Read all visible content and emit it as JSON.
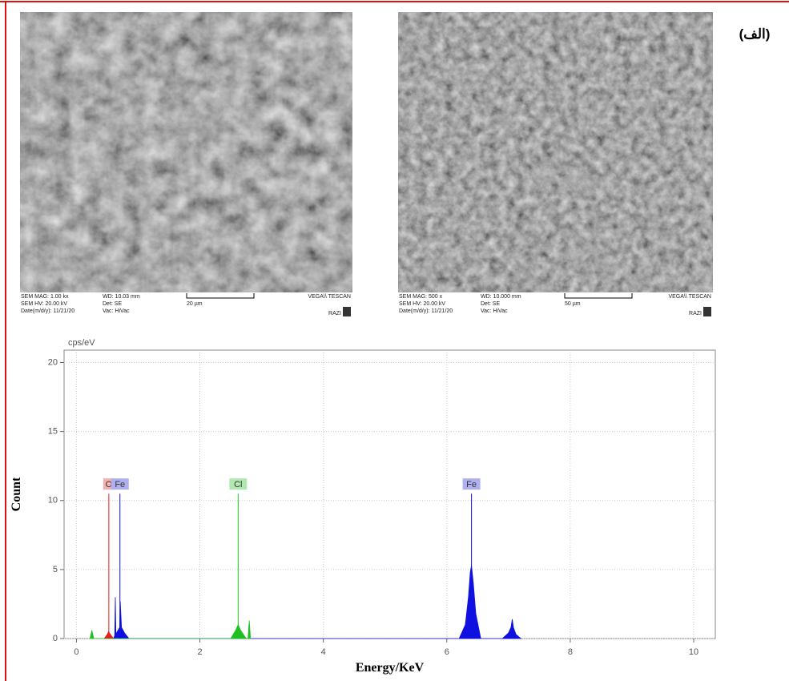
{
  "figure_label": "(الف)",
  "sem_images": [
    {
      "info": [
        [
          "SEM MAG: 1.00 kx",
          "WD: 10.03 mm"
        ],
        [
          "SEM HV: 20.00 kV",
          "Det: SE"
        ],
        [
          "Date(m/d/y): 11/21/20",
          "Vac: HiVac"
        ]
      ],
      "scale": "20 µm",
      "brand": "VEGA\\\\ TESCAN",
      "site": "RAZI"
    },
    {
      "info": [
        [
          "SEM MAG: 500 x",
          "WD: 10.000 mm"
        ],
        [
          "SEM HV: 20.00 kV",
          "Det: SE"
        ],
        [
          "Date(m/d/y): 11/21/20",
          "Vac: HiVac"
        ]
      ],
      "scale": "50 µm",
      "brand": "VEGA\\\\ TESCAN",
      "site": "RAZI"
    }
  ],
  "chart_data": {
    "type": "area",
    "y_unit": "cps/eV",
    "xlabel": "Energy/KeV",
    "ylabel": "Count",
    "xlim": [
      -0.2,
      10.35
    ],
    "ylim": [
      0,
      20.9
    ],
    "xticks": [
      0,
      2,
      4,
      6,
      8,
      10
    ],
    "yticks": [
      0,
      5,
      10,
      15,
      20
    ],
    "grid": true,
    "series": [
      {
        "color": "#e02020",
        "x": [
          0.45,
          0.5,
          0.52,
          0.55,
          0.6
        ],
        "values": [
          0,
          0.3,
          0.5,
          0.3,
          0
        ]
      },
      {
        "color": "#1010e0",
        "x": [
          0.6,
          0.62,
          0.63,
          0.64,
          0.66,
          0.7,
          0.71,
          0.73,
          0.78,
          0.85,
          6.2,
          6.3,
          6.35,
          6.38,
          6.4,
          6.43,
          6.47,
          6.55,
          6.9,
          7.0,
          7.04,
          7.06,
          7.08,
          7.12,
          7.2
        ],
        "values": [
          0,
          0.2,
          3.0,
          0.3,
          0.5,
          0.8,
          2.7,
          0.8,
          0.4,
          0,
          0,
          1.0,
          3.0,
          4.8,
          5.3,
          4.0,
          1.8,
          0,
          0,
          0.4,
          0.8,
          1.4,
          0.8,
          0.3,
          0
        ]
      },
      {
        "color": "#20c020",
        "x": [
          0.22,
          0.25,
          0.28,
          2.5,
          2.58,
          2.62,
          2.66,
          2.75,
          2.78,
          2.8,
          2.82
        ],
        "values": [
          0,
          0.6,
          0,
          0,
          0.6,
          1.0,
          0.6,
          0,
          0,
          1.3,
          0
        ]
      }
    ],
    "peaks": [
      {
        "label": "O",
        "x": 0.525,
        "height": 10.5,
        "color": "#e02020",
        "box": "#f4b0b0"
      },
      {
        "label": "Fe",
        "x": 0.705,
        "height": 10.5,
        "color": "#1010e0",
        "box": "#b0b0f0"
      },
      {
        "label": "Cl",
        "x": 2.62,
        "height": 10.5,
        "color": "#20c020",
        "box": "#b0e8b0"
      },
      {
        "label": "Fe",
        "x": 6.4,
        "height": 10.5,
        "color": "#1010e0",
        "box": "#b0b0f0"
      }
    ]
  }
}
